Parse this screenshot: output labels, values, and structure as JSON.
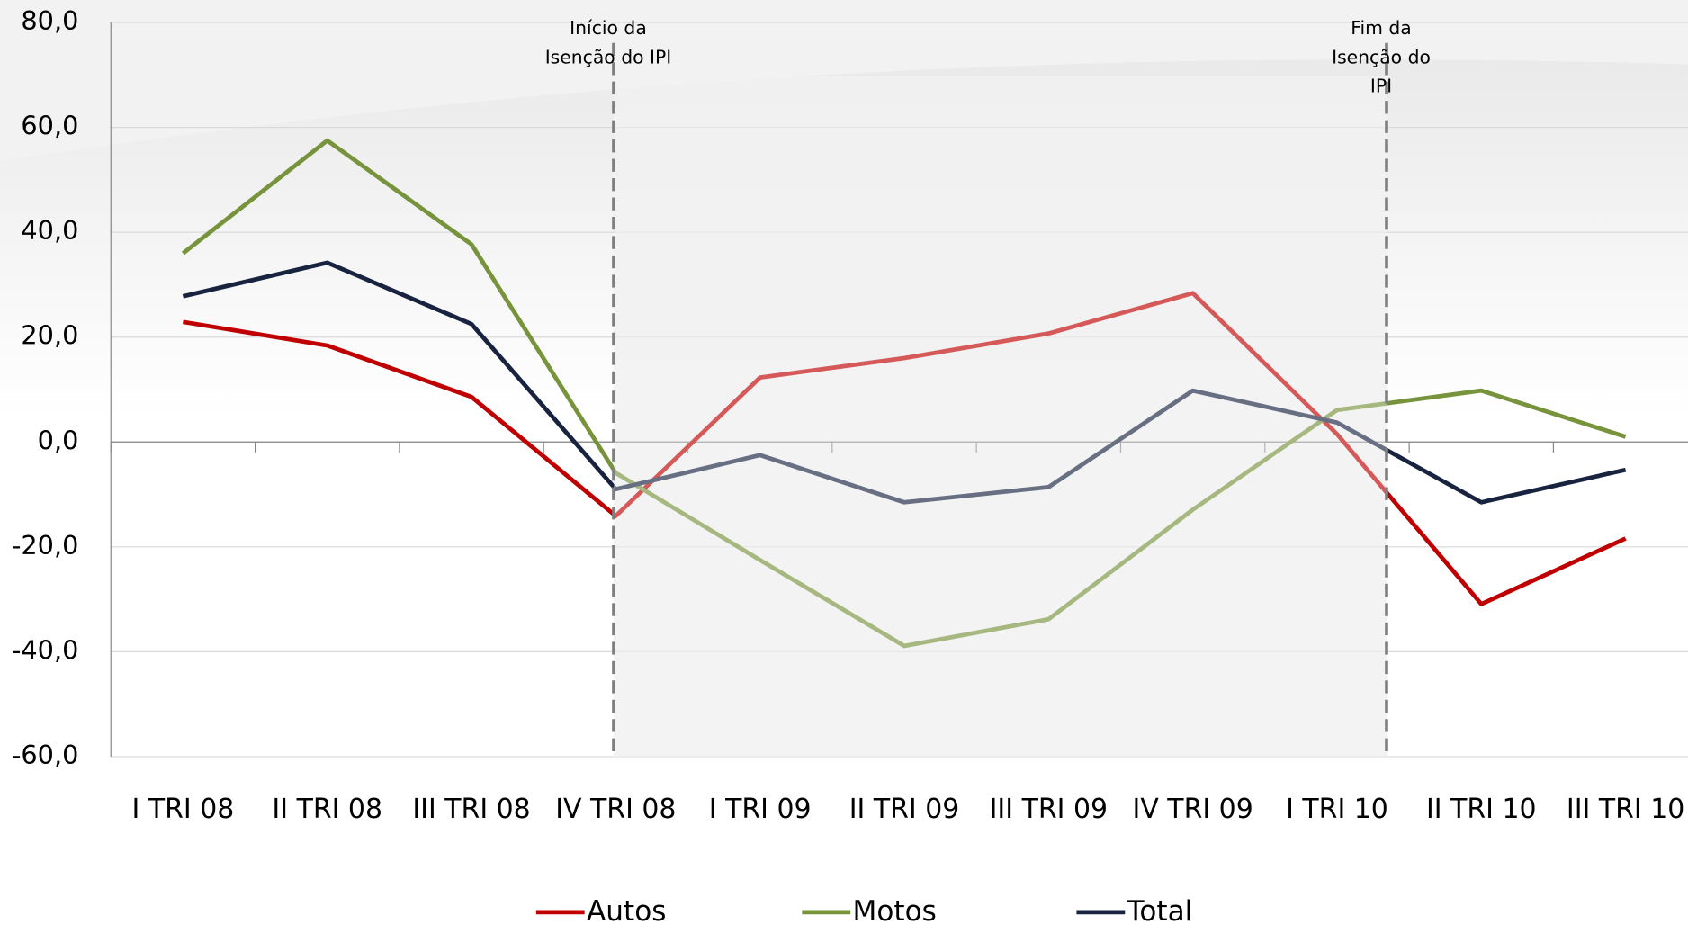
{
  "chart_data": {
    "type": "line",
    "categories": [
      "I TRI 08",
      "II TRI 08",
      "III TRI 08",
      "IV TRI 08",
      "I TRI 09",
      "II TRI 09",
      "III TRI 09",
      "IV TRI 09",
      "I TRI 10",
      "II TRI 10",
      "III TRI 10"
    ],
    "series": [
      {
        "name": "Autos",
        "color": "#c00000",
        "values": [
          22.9,
          18.4,
          8.6,
          -14.1,
          12.3,
          16.0,
          20.7,
          28.4,
          1.5,
          -30.9,
          -18.4
        ]
      },
      {
        "name": "Motos",
        "color": "#77933c",
        "values": [
          36.0,
          57.5,
          37.7,
          -5.9,
          -22.5,
          -38.9,
          -33.8,
          -12.9,
          6.1,
          9.8,
          1.0
        ]
      },
      {
        "name": "Total",
        "color": "#17233f",
        "values": [
          27.8,
          34.2,
          22.5,
          -9.0,
          -2.5,
          -11.5,
          -8.6,
          9.8,
          3.7,
          -11.5,
          -5.3
        ]
      }
    ],
    "ylim": [
      -60,
      80
    ],
    "yticks": [
      {
        "value": -60,
        "label": "-60,0"
      },
      {
        "value": -40,
        "label": "-40,0"
      },
      {
        "value": -20,
        "label": "-20,0"
      },
      {
        "value": 0,
        "label": "0,0"
      },
      {
        "value": 20,
        "label": "20,0"
      },
      {
        "value": 40,
        "label": "40,0"
      },
      {
        "value": 60,
        "label": "60,0"
      },
      {
        "value": 80,
        "label": "80,0"
      }
    ],
    "grid": true,
    "annotations": [
      {
        "lines": [
          "Início da",
          "Isenção do IPI"
        ]
      },
      {
        "lines": [
          "Fim da",
          "Isenção do",
          "IPI"
        ]
      }
    ]
  }
}
